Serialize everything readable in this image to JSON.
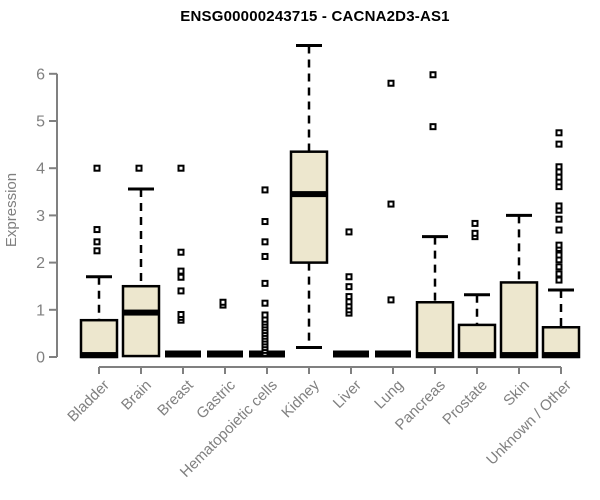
{
  "page": {
    "background": "#ffffff"
  },
  "chart_data": {
    "type": "boxplot",
    "title": "ENSG00000243715 - CACNA2D3-AS1",
    "ylabel": "Expression",
    "xlabel": "",
    "ylim": [
      0,
      6.8
    ],
    "yticks": [
      0,
      1,
      2,
      3,
      4,
      5,
      6
    ],
    "grid": false,
    "legend": "none",
    "colors": {
      "box_fill": "#EDE7CE",
      "box_stroke": "#000000",
      "median": "#000000",
      "axis": "#808080",
      "tick_label": "#808080",
      "title": "#000000",
      "outlier_stroke": "#000000",
      "outlier_fill": "#ffffff"
    },
    "categories": [
      "Bladder",
      "Brain",
      "Breast",
      "Gastric",
      "Hematopoietic cells",
      "Kidney",
      "Liver",
      "Lung",
      "Pancreas",
      "Prostate",
      "Skin",
      "Unknown / Other"
    ],
    "series": [
      {
        "name": "Bladder",
        "q1": 0,
        "median": 0.02,
        "q3": 0.78,
        "whisker_low": 0,
        "whisker_high": 1.7,
        "outliers": [
          2.25,
          2.44,
          2.7,
          4.0
        ]
      },
      {
        "name": "Brain",
        "q1": 0.02,
        "median": 0.92,
        "q3": 1.5,
        "whisker_low": 0.02,
        "whisker_high": 3.56,
        "outliers": [
          4.0
        ]
      },
      {
        "name": "Breast",
        "q1": 0,
        "median": 0,
        "q3": 0,
        "whisker_low": 0,
        "whisker_high": 0,
        "outliers": [
          0.78,
          0.84,
          0.9,
          1.4,
          1.69,
          1.82,
          2.22,
          4.0
        ]
      },
      {
        "name": "Gastric",
        "q1": 0,
        "median": 0,
        "q3": 0,
        "whisker_low": 0,
        "whisker_high": 0,
        "outliers": [
          1.1,
          1.16
        ]
      },
      {
        "name": "Hematopoietic cells",
        "q1": 0,
        "median": 0,
        "q3": 0,
        "whisker_low": 0,
        "whisker_high": 0,
        "outliers": [
          0.08,
          0.14,
          0.2,
          0.26,
          0.32,
          0.38,
          0.44,
          0.5,
          0.56,
          0.62,
          0.68,
          0.74,
          0.8,
          0.89,
          1.14,
          1.56,
          2.13,
          2.44,
          2.87,
          3.54
        ]
      },
      {
        "name": "Kidney",
        "q1": 2.0,
        "median": 3.43,
        "q3": 4.35,
        "whisker_low": 0.2,
        "whisker_high": 6.6,
        "outliers": []
      },
      {
        "name": "Liver",
        "q1": 0,
        "median": 0,
        "q3": 0,
        "whisker_low": 0,
        "whisker_high": 0,
        "outliers": [
          0.93,
          1.0,
          1.08,
          1.17,
          1.28,
          1.49,
          1.7,
          2.65
        ]
      },
      {
        "name": "Lung",
        "q1": 0,
        "median": 0,
        "q3": 0,
        "whisker_low": 0,
        "whisker_high": 0,
        "outliers": [
          1.21,
          3.24,
          5.8
        ]
      },
      {
        "name": "Pancreas",
        "q1": 0,
        "median": 0.02,
        "q3": 1.16,
        "whisker_low": 0,
        "whisker_high": 2.55,
        "outliers": [
          4.88,
          5.98
        ]
      },
      {
        "name": "Prostate",
        "q1": 0,
        "median": 0.02,
        "q3": 0.68,
        "whisker_low": 0,
        "whisker_high": 1.32,
        "outliers": [
          2.55,
          2.62,
          2.83
        ]
      },
      {
        "name": "Skin",
        "q1": 0,
        "median": 0.02,
        "q3": 1.58,
        "whisker_low": 0,
        "whisker_high": 3.0,
        "outliers": []
      },
      {
        "name": "Unknown / Other",
        "q1": 0,
        "median": 0.02,
        "q3": 0.63,
        "whisker_low": 0,
        "whisker_high": 1.42,
        "outliers": [
          1.63,
          1.76,
          1.91,
          2.06,
          2.16,
          2.3,
          2.37,
          2.69,
          2.92,
          3.11,
          3.2,
          3.61,
          3.71,
          3.81,
          3.92,
          4.03,
          4.51,
          4.75
        ]
      }
    ]
  }
}
